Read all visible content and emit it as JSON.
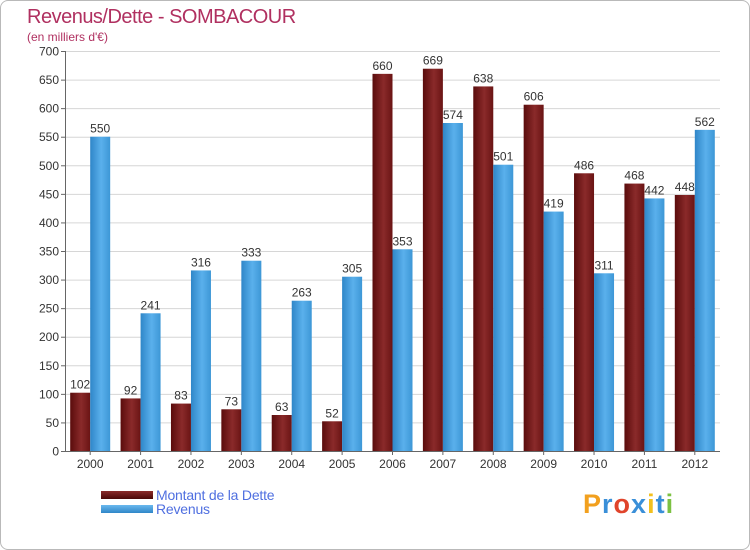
{
  "chart_data": {
    "type": "bar",
    "title": "Revenus/Dette - SOMBACOUR",
    "subtitle": "(en milliers d'€)",
    "categories": [
      "2000",
      "2001",
      "2002",
      "2003",
      "2004",
      "2005",
      "2006",
      "2007",
      "2008",
      "2009",
      "2010",
      "2011",
      "2012"
    ],
    "series": [
      {
        "name": "Montant de la Dette",
        "color": "#7a1a1a",
        "values": [
          102,
          92,
          83,
          73,
          63,
          52,
          660,
          669,
          638,
          606,
          486,
          468,
          448
        ]
      },
      {
        "name": "Revenus",
        "color": "#4aa3e2",
        "values": [
          550,
          241,
          316,
          333,
          263,
          305,
          353,
          574,
          501,
          419,
          311,
          442,
          562
        ]
      }
    ],
    "ylim": [
      0,
      700
    ],
    "yticks": [
      0,
      50,
      100,
      150,
      200,
      250,
      300,
      350,
      400,
      450,
      500,
      550,
      600,
      650,
      700
    ],
    "grid": true,
    "legend": "bottom-left"
  },
  "logo": {
    "letters": [
      "P",
      "r",
      "o",
      "x",
      "i",
      "t",
      "i"
    ],
    "colors": [
      "#f2a01e",
      "#3a8fd8",
      "#e0442b",
      "#3a8fd8",
      "#f2c01e",
      "#3a8fd8",
      "#7cc142"
    ]
  }
}
